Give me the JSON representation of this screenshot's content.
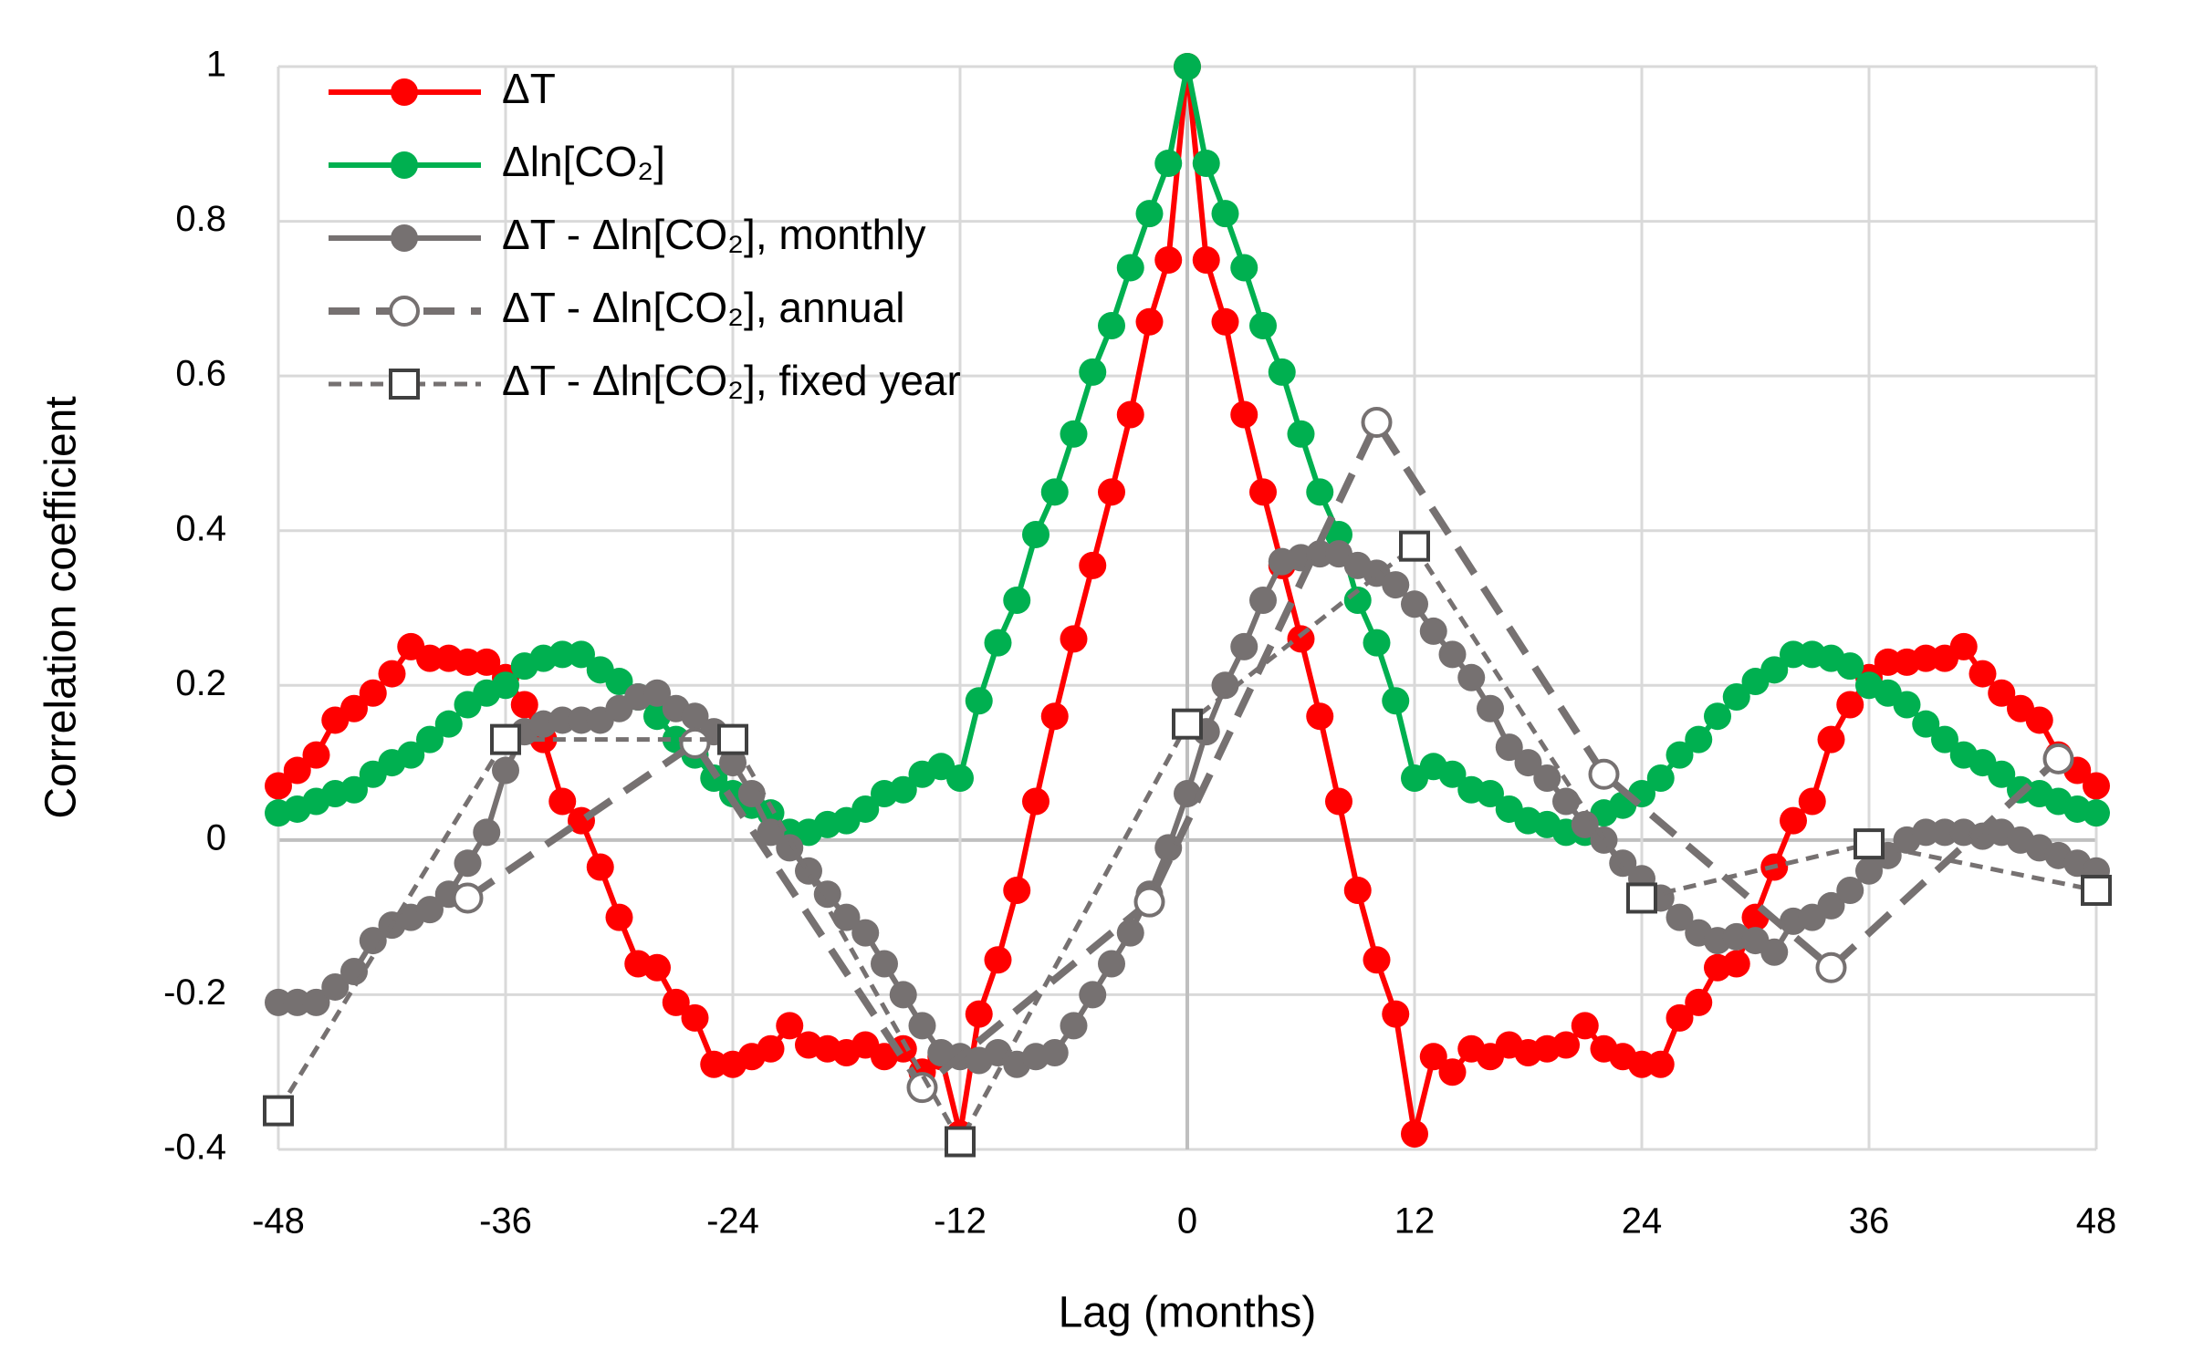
{
  "chart_data": {
    "type": "line",
    "xlabel": "Lag (months)",
    "ylabel": "Correlation coefficient",
    "xlim": [
      -48,
      48
    ],
    "xticks": [
      -48,
      -36,
      -24,
      -12,
      0,
      12,
      24,
      36,
      48
    ],
    "ylim": [
      -0.4,
      1
    ],
    "yticks": [
      -0.4,
      -0.2,
      0,
      0.2,
      0.4,
      0.6,
      0.8,
      1
    ],
    "grid": true,
    "legend": "upper left",
    "x": [
      -48,
      -47,
      -46,
      -45,
      -44,
      -43,
      -42,
      -41,
      -40,
      -39,
      -38,
      -37,
      -36,
      -35,
      -34,
      -33,
      -32,
      -31,
      -30,
      -29,
      -28,
      -27,
      -26,
      -25,
      -24,
      -23,
      -22,
      -21,
      -20,
      -19,
      -18,
      -17,
      -16,
      -15,
      -14,
      -13,
      -12,
      -11,
      -10,
      -9,
      -8,
      -7,
      -6,
      -5,
      -4,
      -3,
      -2,
      -1,
      0,
      1,
      2,
      3,
      4,
      5,
      6,
      7,
      8,
      9,
      10,
      11,
      12,
      13,
      14,
      15,
      16,
      17,
      18,
      19,
      20,
      21,
      22,
      23,
      24,
      25,
      26,
      27,
      28,
      29,
      30,
      31,
      32,
      33,
      34,
      35,
      36,
      37,
      38,
      39,
      40,
      41,
      42,
      43,
      44,
      45,
      46,
      47,
      48
    ],
    "series": [
      {
        "name": "ΔT",
        "color": "#ff0000",
        "marker": "circle-filled",
        "dash": "solid",
        "values": [
          0.07,
          0.09,
          0.11,
          0.155,
          0.17,
          0.19,
          0.215,
          0.25,
          0.235,
          0.235,
          0.23,
          0.23,
          0.21,
          0.175,
          0.13,
          0.05,
          0.025,
          -0.035,
          -0.1,
          -0.16,
          -0.165,
          -0.21,
          -0.23,
          -0.29,
          -0.29,
          -0.28,
          -0.27,
          -0.24,
          -0.265,
          -0.27,
          -0.275,
          -0.265,
          -0.28,
          -0.27,
          -0.3,
          -0.28,
          -0.38,
          -0.225,
          -0.155,
          -0.065,
          0.05,
          0.16,
          0.26,
          0.355,
          0.45,
          0.55,
          0.67,
          0.75,
          1.0,
          0.75,
          0.67,
          0.55,
          0.45,
          0.355,
          0.26,
          0.16,
          0.05,
          -0.065,
          -0.155,
          -0.225,
          -0.38,
          -0.28,
          -0.3,
          -0.27,
          -0.28,
          -0.265,
          -0.275,
          -0.27,
          -0.265,
          -0.24,
          -0.27,
          -0.28,
          -0.29,
          -0.29,
          -0.23,
          -0.21,
          -0.165,
          -0.16,
          -0.1,
          -0.035,
          0.025,
          0.05,
          0.13,
          0.175,
          0.21,
          0.23,
          0.23,
          0.235,
          0.235,
          0.25,
          0.215,
          0.19,
          0.17,
          0.155,
          0.11,
          0.09,
          0.07
        ]
      },
      {
        "name": "Δln[CO₂]",
        "color": "#00b050",
        "marker": "circle-filled",
        "dash": "solid",
        "values": [
          0.035,
          0.04,
          0.05,
          0.06,
          0.065,
          0.085,
          0.1,
          0.11,
          0.13,
          0.15,
          0.175,
          0.19,
          0.2,
          0.225,
          0.235,
          0.24,
          0.24,
          0.22,
          0.205,
          0.185,
          0.16,
          0.13,
          0.11,
          0.08,
          0.06,
          0.045,
          0.035,
          0.01,
          0.01,
          0.02,
          0.025,
          0.04,
          0.06,
          0.065,
          0.085,
          0.095,
          0.08,
          0.18,
          0.255,
          0.31,
          0.395,
          0.45,
          0.525,
          0.605,
          0.665,
          0.74,
          0.81,
          0.875,
          1.0,
          0.875,
          0.81,
          0.74,
          0.665,
          0.605,
          0.525,
          0.45,
          0.395,
          0.31,
          0.255,
          0.18,
          0.08,
          0.095,
          0.085,
          0.065,
          0.06,
          0.04,
          0.025,
          0.02,
          0.01,
          0.01,
          0.035,
          0.045,
          0.06,
          0.08,
          0.11,
          0.13,
          0.16,
          0.185,
          0.205,
          0.22,
          0.24,
          0.24,
          0.235,
          0.225,
          0.2,
          0.19,
          0.175,
          0.15,
          0.13,
          0.11,
          0.1,
          0.085,
          0.065,
          0.06,
          0.05,
          0.04,
          0.035
        ]
      },
      {
        "name": "ΔT - Δln[CO₂], monthly",
        "color": "#767171",
        "marker": "circle-filled",
        "dash": "solid",
        "values": [
          -0.21,
          -0.21,
          -0.21,
          -0.19,
          -0.17,
          -0.13,
          -0.11,
          -0.1,
          -0.09,
          -0.07,
          -0.03,
          0.01,
          0.09,
          0.14,
          0.15,
          0.155,
          0.155,
          0.155,
          0.17,
          0.185,
          0.19,
          0.17,
          0.16,
          0.14,
          0.1,
          0.06,
          0.01,
          -0.01,
          -0.04,
          -0.07,
          -0.1,
          -0.12,
          -0.16,
          -0.2,
          -0.24,
          -0.275,
          -0.28,
          -0.285,
          -0.275,
          -0.29,
          -0.28,
          -0.275,
          -0.24,
          -0.2,
          -0.16,
          -0.12,
          -0.07,
          -0.01,
          0.06,
          0.14,
          0.2,
          0.25,
          0.31,
          0.36,
          0.365,
          0.37,
          0.37,
          0.355,
          0.345,
          0.33,
          0.305,
          0.27,
          0.24,
          0.21,
          0.17,
          0.12,
          0.1,
          0.08,
          0.05,
          0.02,
          0.0,
          -0.03,
          -0.05,
          -0.075,
          -0.1,
          -0.12,
          -0.13,
          -0.125,
          -0.13,
          -0.145,
          -0.105,
          -0.1,
          -0.085,
          -0.065,
          -0.04,
          -0.02,
          0.0,
          0.01,
          0.01,
          0.01,
          0.005,
          0.01,
          0.0,
          -0.01,
          -0.02,
          -0.03,
          -0.04
        ]
      },
      {
        "name": "ΔT - Δln[CO₂], annual",
        "color": "#767171",
        "marker": "circle-open",
        "dash": "long",
        "x": [
          -38,
          -26,
          -14,
          -2,
          10,
          22,
          34,
          46
        ],
        "values": [
          -0.075,
          0.125,
          -0.32,
          -0.08,
          0.54,
          0.085,
          -0.165,
          0.105
        ]
      },
      {
        "name": "ΔT - Δln[CO₂], fixed year",
        "color": "#767171",
        "marker": "square-open",
        "dash": "short",
        "x": [
          -48,
          -36,
          -24,
          -12,
          0,
          12,
          24,
          36,
          48
        ],
        "values": [
          -0.35,
          0.13,
          0.13,
          -0.39,
          0.15,
          0.38,
          -0.075,
          -0.005,
          -0.065
        ]
      }
    ]
  }
}
